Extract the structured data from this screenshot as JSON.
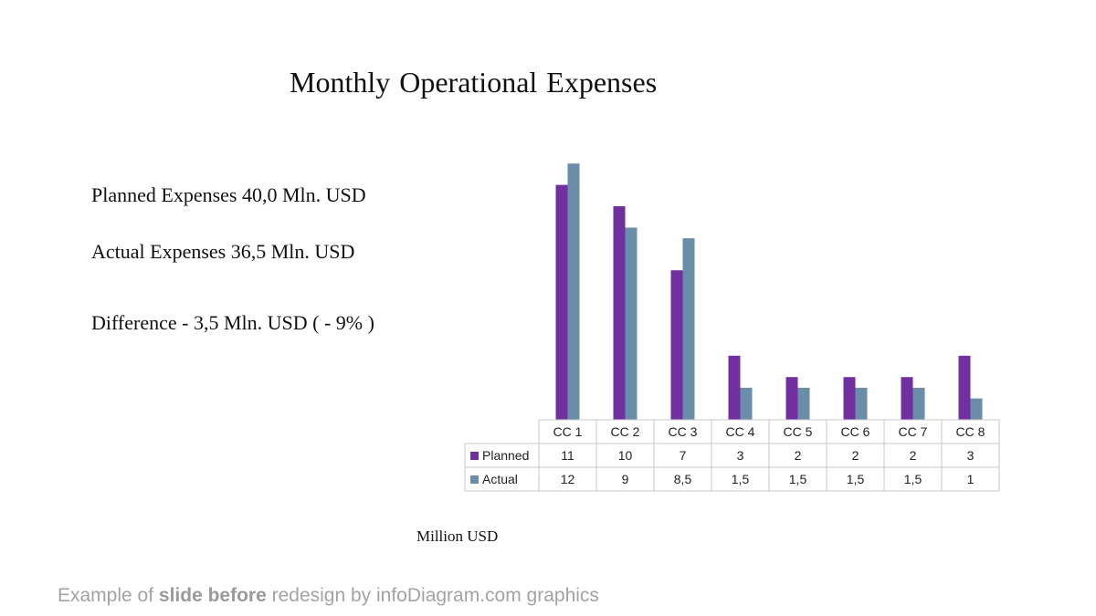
{
  "slide": {
    "title": "Monthly Operational Expenses",
    "stats": {
      "planned": "Planned Expenses 40,0 Mln. USD",
      "actual": "Actual Expenses 36,5 Mln. USD",
      "difference": "Difference - 3,5 Mln. USD ( - 9% )"
    },
    "unit_label": "Million USD",
    "footer": {
      "part1": "Example of ",
      "part2": "slide before",
      "part3": " redesign by infoDiagram.com graphics"
    }
  },
  "chart_data": {
    "type": "bar",
    "categories": [
      "CC 1",
      "CC 2",
      "CC 3",
      "CC 4",
      "CC 5",
      "CC 6",
      "CC 7",
      "CC 8"
    ],
    "series": [
      {
        "name": "Planned",
        "color": "#7030a0",
        "values": [
          11,
          10,
          7,
          3,
          2,
          2,
          2,
          3
        ],
        "labels": [
          "11",
          "10",
          "7",
          "3",
          "2",
          "2",
          "2",
          "3"
        ]
      },
      {
        "name": "Actual",
        "color": "#6a8ea8",
        "values": [
          12,
          9,
          8.5,
          1.5,
          1.5,
          1.5,
          1.5,
          1
        ],
        "labels": [
          "12",
          "9",
          "8,5",
          "1,5",
          "1,5",
          "1,5",
          "1,5",
          "1"
        ]
      }
    ],
    "ylim": [
      0,
      12
    ],
    "grid": false,
    "data_table": true,
    "title": "",
    "xlabel": "",
    "ylabel": ""
  }
}
